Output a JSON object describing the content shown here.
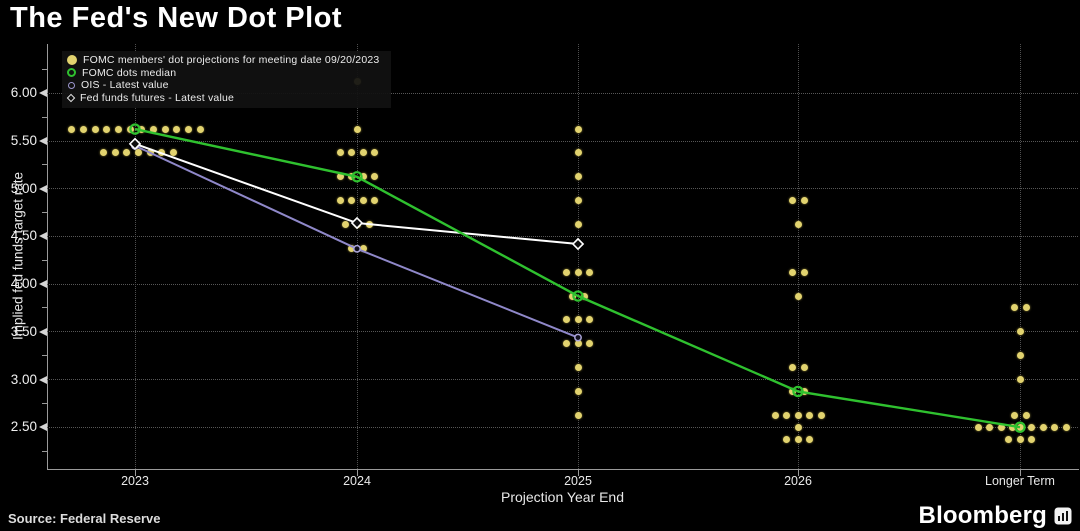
{
  "title": "The Fed's New Dot Plot",
  "source": "Source: Federal Reserve",
  "brand": {
    "name": "Bloomberg"
  },
  "colors": {
    "background": "#000000",
    "dot": "#e2d36f",
    "median_line": "#2fc12f",
    "ois_line": "#8f88c9",
    "futures_line": "#ffffff",
    "grid_h": "#575757",
    "grid_v": "#4f4f4f",
    "axis": "#9a9a9a",
    "text": "#e9e9e9"
  },
  "chart_data": {
    "type": "scatter",
    "title": "The Fed's New Dot Plot",
    "xlabel": "Projection Year End",
    "ylabel": "Implied fed funds target rate",
    "ylim": [
      2.25,
      6.25
    ],
    "grid": true,
    "legend_position": "top-left",
    "y_ticks": [
      "6.00",
      "5.50",
      "5.00",
      "4.50",
      "4.00",
      "3.50",
      "3.00",
      "2.50"
    ],
    "y_minor_ticks": [
      6.25,
      5.75,
      5.25,
      4.75,
      4.25,
      3.75,
      3.25,
      2.75,
      2.25
    ],
    "categories": [
      "2023",
      "2024",
      "2025",
      "2026",
      "Longer Term"
    ],
    "legend": [
      {
        "marker": "dot-filled",
        "color": "#e2d36f",
        "label": "FOMC members' dot projections for meeting date 09/20/2023"
      },
      {
        "marker": "ring",
        "color": "#2fc12f",
        "label": "FOMC dots median"
      },
      {
        "marker": "ring-small",
        "color": "#9d97cf",
        "label": "OIS - Latest value"
      },
      {
        "marker": "diamond",
        "color": "#e8e8e8",
        "label": "Fed funds futures - Latest value"
      }
    ],
    "dots": [
      {
        "category": "2023",
        "rows": [
          {
            "value": 5.625,
            "offsets": [
              -63.3,
              -51.7,
              -40,
              -28.3,
              -16.7,
              -5,
              6.7,
              18.3,
              30,
              41.7,
              53.3,
              65
            ]
          },
          {
            "value": 5.375,
            "offsets": [
              -31.7,
              -20,
              -8.3,
              3.3,
              15,
              26.7,
              38.3
            ]
          }
        ]
      },
      {
        "category": "2024",
        "rows": [
          {
            "value": 6.125,
            "offsets": [
              0
            ]
          },
          {
            "value": 5.625,
            "offsets": [
              0
            ]
          },
          {
            "value": 5.375,
            "offsets": [
              -17,
              -5.5,
              6,
              17
            ]
          },
          {
            "value": 5.125,
            "offsets": [
              -17,
              -5.5,
              6.5,
              17
            ]
          },
          {
            "value": 4.875,
            "offsets": [
              -17,
              -5.5,
              6.5,
              17
            ]
          },
          {
            "value": 4.625,
            "offsets": [
              -12,
              0,
              12
            ]
          },
          {
            "value": 4.375,
            "offsets": [
              -6,
              6
            ]
          }
        ]
      },
      {
        "category": "2025",
        "rows": [
          {
            "value": 5.625,
            "offsets": [
              0
            ]
          },
          {
            "value": 5.375,
            "offsets": [
              0
            ]
          },
          {
            "value": 5.125,
            "offsets": [
              0
            ]
          },
          {
            "value": 4.875,
            "offsets": [
              0
            ]
          },
          {
            "value": 4.625,
            "offsets": [
              0
            ]
          },
          {
            "value": 4.125,
            "offsets": [
              -11.5,
              0,
              11.5
            ]
          },
          {
            "value": 3.875,
            "offsets": [
              -6,
              6
            ]
          },
          {
            "value": 3.625,
            "offsets": [
              -11.5,
              0,
              11.5
            ]
          },
          {
            "value": 3.375,
            "offsets": [
              -11.5,
              0,
              11.5
            ]
          },
          {
            "value": 3.125,
            "offsets": [
              0
            ]
          },
          {
            "value": 2.875,
            "offsets": [
              0
            ]
          },
          {
            "value": 2.625,
            "offsets": [
              0
            ]
          }
        ]
      },
      {
        "category": "2026",
        "rows": [
          {
            "value": 4.875,
            "offsets": [
              -6,
              6
            ]
          },
          {
            "value": 4.625,
            "offsets": [
              0
            ]
          },
          {
            "value": 4.125,
            "offsets": [
              -6,
              6
            ]
          },
          {
            "value": 3.875,
            "offsets": [
              0
            ]
          },
          {
            "value": 3.125,
            "offsets": [
              -6,
              6
            ]
          },
          {
            "value": 2.875,
            "offsets": [
              -6,
              6
            ]
          },
          {
            "value": 2.625,
            "offsets": [
              -23,
              -11.5,
              0,
              11.5,
              23
            ]
          },
          {
            "value": 2.5,
            "offsets": [
              0
            ]
          },
          {
            "value": 2.375,
            "offsets": [
              -11.5,
              0,
              11.5
            ]
          }
        ]
      },
      {
        "category": "Longer Term",
        "rows": [
          {
            "value": 3.75,
            "offsets": [
              -6,
              6
            ]
          },
          {
            "value": 3.5,
            "offsets": [
              0
            ]
          },
          {
            "value": 3.25,
            "offsets": [
              0
            ]
          },
          {
            "value": 3.0,
            "offsets": [
              0
            ]
          },
          {
            "value": 2.625,
            "offsets": [
              -6,
              6
            ]
          },
          {
            "value": 2.5,
            "offsets": [
              -42,
              -30.5,
              -19,
              -7.5,
              0,
              11.5,
              23,
              34.5,
              46
            ]
          },
          {
            "value": 2.375,
            "offsets": [
              -11.5,
              0,
              11.5
            ]
          }
        ]
      }
    ],
    "series": [
      {
        "name": "OIS - Latest value",
        "color": "#8f88c9",
        "marker": "circle",
        "points": [
          {
            "c": 0,
            "v": 5.45
          },
          {
            "c": 1,
            "v": 4.37
          },
          {
            "c": 2,
            "v": 3.44
          }
        ]
      },
      {
        "name": "Fed funds futures - Latest value",
        "color": "#ffffff",
        "marker": "diamond",
        "points": [
          {
            "c": 0,
            "v": 5.47
          },
          {
            "c": 1,
            "v": 4.64
          },
          {
            "c": 2,
            "v": 4.42
          }
        ]
      },
      {
        "name": "FOMC dots median",
        "color": "#2fc12f",
        "marker": "ring",
        "points": [
          {
            "c": 0,
            "v": 5.625
          },
          {
            "c": 1,
            "v": 5.125
          },
          {
            "c": 2,
            "v": 3.875
          },
          {
            "c": 3,
            "v": 2.875
          },
          {
            "c": 4,
            "v": 2.5
          }
        ]
      }
    ]
  }
}
